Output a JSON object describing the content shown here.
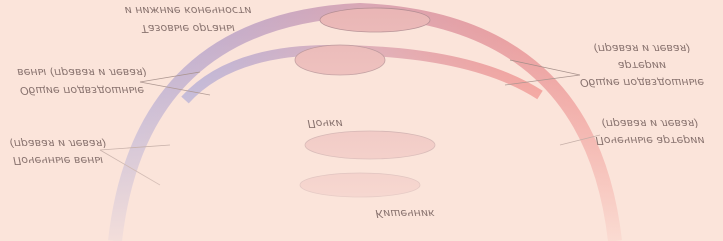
{
  "title_lines": [
    "Тазовые органы",
    "и нижние конечности"
  ],
  "labels": {
    "iliac_veins": [
      "Общие подвздошные",
      "вены (правая и левая)"
    ],
    "kidneys": [
      "Почки"
    ],
    "renal_veins": [
      "Почечные вены",
      "(правая и левая)"
    ],
    "iliac_arteries": [
      "Общие подвздошные",
      "артерии",
      "(правая и левая)"
    ],
    "renal_arteries": [
      "Почечные артерии",
      "(правая и левая)"
    ],
    "intestine": [
      "Кишечник"
    ]
  }
}
